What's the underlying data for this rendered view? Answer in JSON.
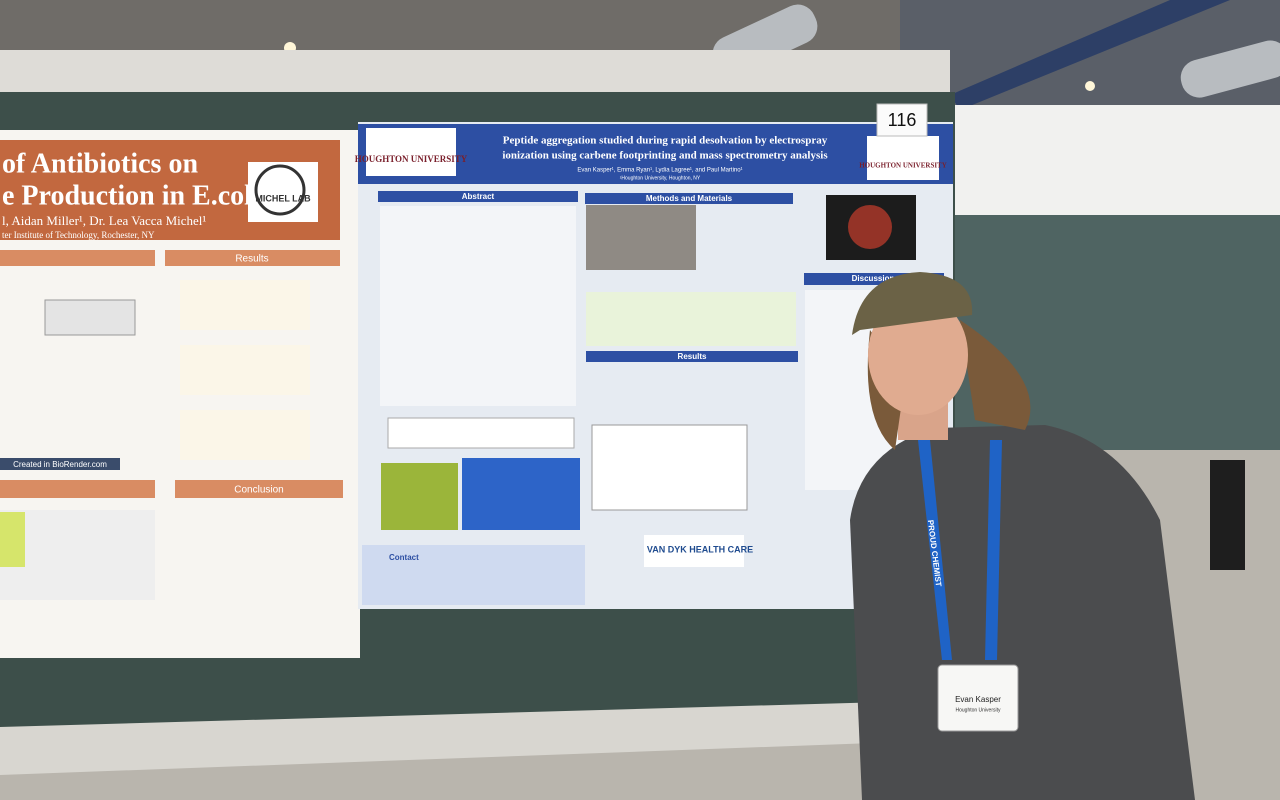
{
  "left_poster": {
    "title_line1": "of Antibiotics on",
    "title_line2": "e Production in E.coli",
    "authors": "l, Aidan Miller¹, Dr. Lea Vacca Michel¹",
    "affiliation": "ter Institute of Technology, Rochester, NY",
    "logo": "MICHEL LAB",
    "sections": [
      "Results",
      "Conclusion"
    ],
    "created": "Created in BioRender.com"
  },
  "main_poster": {
    "number": "116",
    "title_line1": "Peptide aggregation studied during rapid desolvation by electrospray",
    "title_line2": "ionization using carbene footprinting and mass spectrometry analysis",
    "authors": "Evan Kasper¹, Emma Ryan¹, Lydia Lagree¹, and Paul Martino¹",
    "affiliation": "¹Houghton University, Houghton, NY",
    "logo": "HOUGHTON UNIVERSITY",
    "sections": [
      "Abstract",
      "Methods and Materials",
      "Results",
      "Discussion"
    ],
    "contact": "Contact",
    "sponsor": "VAN DYK HEALTH CARE"
  },
  "badge": {
    "name": "Evan Kasper",
    "org": "Houghton University",
    "lanyard": "PROUD CHEMIST"
  }
}
